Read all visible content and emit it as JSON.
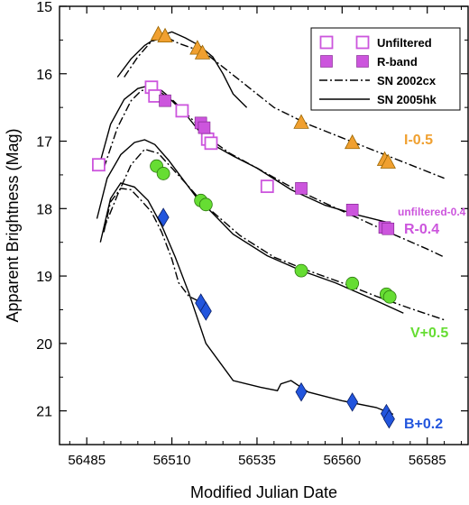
{
  "chart_data": {
    "type": "scatter",
    "xlabel": "Modified Julian Date",
    "ylabel": "Apparent Brightness (Mag)",
    "xlim": [
      56477,
      56597
    ],
    "ylim": [
      15,
      21.5
    ],
    "y_inverted": true,
    "x_ticks": [
      56485,
      56510,
      56535,
      56560,
      56585
    ],
    "y_ticks": [
      15,
      16,
      17,
      18,
      19,
      20,
      21
    ],
    "grid": false,
    "legend_position": "top-right",
    "legend": [
      {
        "label": "Unfiltered",
        "marker": "open-square",
        "color": "#cc55dd"
      },
      {
        "label": "R-band",
        "marker": "filled-square",
        "color": "#cc55dd"
      },
      {
        "label": "SN 2002cx",
        "line": "dash-dot",
        "color": "#000000"
      },
      {
        "label": "SN 2005hk",
        "line": "solid",
        "color": "#000000"
      }
    ],
    "band_labels": [
      {
        "text": "I-0.5",
        "color": "#f0a030"
      },
      {
        "text": "unfiltered-0.4",
        "color": "#cc55dd"
      },
      {
        "text": "R-0.4",
        "color": "#cc55dd"
      },
      {
        "text": "V+0.5",
        "color": "#66dd33"
      },
      {
        "text": "B+0.2",
        "color": "#2255dd"
      }
    ],
    "series": [
      {
        "name": "I-0.5",
        "marker": "triangle",
        "color": "#f0a030",
        "stroke": "#9a6500",
        "x": [
          56506.0,
          56508.0,
          56517.5,
          56519.0,
          56548.0,
          56563.0,
          56572.5,
          56573.5
        ],
        "y": [
          15.42,
          15.45,
          15.63,
          15.7,
          16.73,
          17.03,
          17.28,
          17.32
        ]
      },
      {
        "name": "Unfiltered",
        "marker": "open-square",
        "color": "#cc55dd",
        "x": [
          56488.5,
          56504.0,
          56505.0,
          56513.0,
          56520.5,
          56521.5,
          56538.0
        ],
        "y": [
          17.35,
          16.2,
          16.33,
          16.55,
          16.97,
          17.03,
          17.67
        ]
      },
      {
        "name": "R-band",
        "marker": "filled-square",
        "color": "#cc55dd",
        "x": [
          56508.0,
          56518.5,
          56519.5,
          56548.0,
          56563.0,
          56572.5,
          56573.5
        ],
        "y": [
          16.4,
          16.73,
          16.8,
          17.7,
          18.02,
          18.28,
          18.3
        ]
      },
      {
        "name": "V+0.5",
        "marker": "circle",
        "color": "#66dd33",
        "stroke": "#2e7a10",
        "x": [
          56505.5,
          56507.5,
          56518.5,
          56520.0,
          56548.0,
          56563.0,
          56573.0,
          56574.0
        ],
        "y": [
          17.37,
          17.48,
          17.88,
          17.94,
          18.92,
          19.11,
          19.27,
          19.31
        ]
      },
      {
        "name": "B+0.2",
        "marker": "diamond",
        "color": "#2255dd",
        "stroke": "#0a1f66",
        "x": [
          56507.5,
          56518.5,
          56520.0,
          56548.0,
          56563.0,
          56573.0,
          56573.8
        ],
        "y": [
          18.13,
          19.4,
          19.52,
          20.72,
          20.87,
          21.04,
          21.12
        ]
      }
    ],
    "curves": [
      {
        "name": "SN 2002cx",
        "group": "I",
        "style": "dash-dot",
        "x": [
          56496,
          56500,
          56504,
          56508,
          56512,
          56516,
          56520,
          56525,
          56530,
          56540,
          56550,
          56560,
          56570,
          56580,
          56590
        ],
        "y": [
          16.05,
          15.75,
          15.52,
          15.45,
          15.55,
          15.62,
          15.7,
          15.9,
          16.1,
          16.5,
          16.75,
          16.95,
          17.15,
          17.35,
          17.55
        ]
      },
      {
        "name": "SN 2005hk",
        "group": "I",
        "style": "solid",
        "x": [
          56494,
          56498,
          56502,
          56506,
          56510,
          56514,
          56518,
          56522,
          56525,
          56528,
          56532
        ],
        "y": [
          16.05,
          15.78,
          15.58,
          15.45,
          15.38,
          15.47,
          15.58,
          15.75,
          16.0,
          16.3,
          16.5
        ]
      },
      {
        "name": "SN 2002cx",
        "group": "R",
        "style": "dash-dot",
        "x": [
          56490,
          56494,
          56498,
          56501,
          56504,
          56507,
          56510,
          56514,
          56518,
          56522,
          56527,
          56535,
          56545,
          56555,
          56565,
          56575,
          56585,
          56590
        ],
        "y": [
          17.4,
          16.8,
          16.4,
          16.25,
          16.22,
          16.25,
          16.38,
          16.58,
          16.78,
          17.0,
          17.18,
          17.4,
          17.68,
          17.92,
          18.15,
          18.38,
          18.6,
          18.72
        ]
      },
      {
        "name": "SN 2005hk",
        "group": "R",
        "style": "solid",
        "x": [
          56489,
          56492,
          56496,
          56500,
          56503,
          56506,
          56510,
          56514,
          56518,
          56522,
          56528,
          56535,
          56545,
          56555,
          56565,
          56573
        ],
        "y": [
          17.3,
          16.75,
          16.38,
          16.22,
          16.18,
          16.25,
          16.4,
          16.6,
          16.85,
          17.05,
          17.22,
          17.4,
          17.72,
          17.95,
          18.1,
          18.2
        ]
      },
      {
        "name": "SN 2002cx",
        "group": "V",
        "style": "dash-dot",
        "x": [
          56490,
          56494,
          56498,
          56502,
          56506,
          56510,
          56514,
          56518,
          56522,
          56530,
          56540,
          56550,
          56560,
          56570,
          56580,
          56590
        ],
        "y": [
          18.3,
          17.8,
          17.35,
          17.12,
          17.18,
          17.4,
          17.62,
          17.85,
          18.05,
          18.4,
          18.72,
          18.92,
          19.1,
          19.3,
          19.48,
          19.65
        ]
      },
      {
        "name": "SN 2005hk",
        "group": "V",
        "style": "solid",
        "x": [
          56488,
          56491,
          56495,
          56499,
          56502,
          56505,
          56509,
          56513,
          56517,
          56521,
          56528,
          56538,
          56548,
          56558,
          56568,
          56578
        ],
        "y": [
          18.15,
          17.55,
          17.2,
          17.02,
          16.98,
          17.05,
          17.28,
          17.55,
          17.82,
          18.02,
          18.38,
          18.7,
          18.92,
          19.1,
          19.32,
          19.55
        ]
      },
      {
        "name": "SN 2002cx",
        "group": "B",
        "style": "dash-dot",
        "x": [
          56490,
          56492,
          56495,
          56498,
          56501,
          56504,
          56507,
          56510,
          56512,
          56515,
          56519
        ],
        "y": [
          18.35,
          17.9,
          17.7,
          17.72,
          17.88,
          18.05,
          18.35,
          18.75,
          19.1,
          19.3,
          19.4
        ]
      },
      {
        "name": "SN 2005hk",
        "group": "B",
        "style": "solid",
        "x": [
          56489,
          56492,
          56495,
          56499,
          56503,
          56507,
          56511,
          56515,
          56520,
          56528,
          56536,
          56541,
          56542,
          56545,
          56550,
          56560,
          56570,
          56575
        ],
        "y": [
          18.5,
          17.85,
          17.62,
          17.68,
          17.88,
          18.25,
          18.72,
          19.25,
          20.0,
          20.55,
          20.65,
          20.7,
          20.6,
          20.55,
          20.72,
          20.85,
          20.95,
          21.05
        ]
      }
    ]
  }
}
